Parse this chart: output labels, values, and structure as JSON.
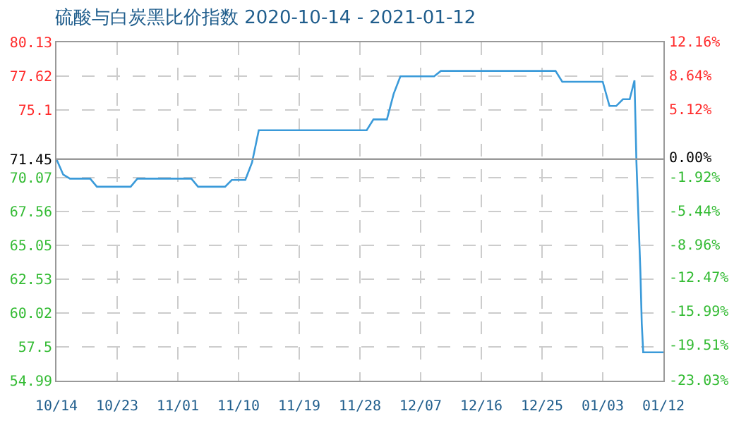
{
  "chart_data": {
    "type": "line",
    "title": "硫酸与白炭黑比价指数 2020-10-14 - 2021-01-12",
    "x": [
      "2020-10-14",
      "2020-10-15",
      "2020-10-16",
      "2020-10-19",
      "2020-10-20",
      "2020-10-25",
      "2020-10-26",
      "2020-11-03",
      "2020-11-04",
      "2020-11-08",
      "2020-11-09",
      "2020-11-11",
      "2020-11-12",
      "2020-11-13",
      "2020-11-29",
      "2020-11-30",
      "2020-12-02",
      "2020-12-03",
      "2020-12-04",
      "2020-12-09",
      "2020-12-10",
      "2020-12-27",
      "2020-12-28",
      "2021-01-03",
      "2021-01-04",
      "2021-01-05",
      "2021-01-06",
      "2021-01-07",
      "2021-01-07T17:00",
      "2021-01-08",
      "2021-01-08T07:00",
      "2021-01-08T14:00",
      "2021-01-08T19:00",
      "2021-01-09",
      "2021-01-12"
    ],
    "series": [
      {
        "color": "#3a9ad9",
        "values": [
          71.45,
          70.3,
          70,
          70,
          69.4,
          69.4,
          70,
          70,
          69.4,
          69.4,
          69.9,
          69.9,
          71.2,
          73.6,
          73.6,
          74.4,
          74.4,
          76.3,
          77.6,
          77.6,
          78,
          78,
          77.2,
          77.2,
          75.4,
          75.4,
          75.9,
          75.9,
          77.3,
          71.2,
          67.2,
          63.1,
          59.2,
          57.1,
          57.1
        ]
      }
    ],
    "xlim": [
      "2020-10-14",
      "2021-01-12"
    ],
    "xticks": [
      {
        "value": "2020-10-14",
        "label": "10/14"
      },
      {
        "value": "2020-10-23",
        "label": "10/23"
      },
      {
        "value": "2020-11-01",
        "label": "11/01"
      },
      {
        "value": "2020-11-10",
        "label": "11/10"
      },
      {
        "value": "2020-11-19",
        "label": "11/19"
      },
      {
        "value": "2020-11-28",
        "label": "11/28"
      },
      {
        "value": "2020-12-07",
        "label": "12/07"
      },
      {
        "value": "2020-12-16",
        "label": "12/16"
      },
      {
        "value": "2020-12-25",
        "label": "12/25"
      },
      {
        "value": "2021-01-03",
        "label": "01/03"
      },
      {
        "value": "2021-01-12",
        "label": "01/12"
      }
    ],
    "ylim": [
      54.99,
      80.13
    ],
    "yticks": [
      54.99,
      57.5,
      60.02,
      62.53,
      65.05,
      67.56,
      70.07,
      71.45,
      75.1,
      77.62,
      80.13
    ],
    "y2lim": [
      -23.03,
      12.16
    ],
    "y2ticks": [
      {
        "value": -23.03,
        "label": "-23.03%"
      },
      {
        "value": -19.51,
        "label": "-19.51%"
      },
      {
        "value": -15.99,
        "label": "-15.99%"
      },
      {
        "value": -12.47,
        "label": "-12.47%"
      },
      {
        "value": -8.96,
        "label": "-8.96%"
      },
      {
        "value": -5.44,
        "label": "-5.44%"
      },
      {
        "value": -1.92,
        "label": "-1.92%"
      },
      {
        "value": 0,
        "label": "0.00%"
      },
      {
        "value": 5.12,
        "label": "5.12%"
      },
      {
        "value": 8.64,
        "label": "8.64%"
      },
      {
        "value": 12.16,
        "label": "12.16%"
      }
    ],
    "ref_lines": [
      {
        "axis": "y",
        "value": 71.45,
        "color": "#999999"
      }
    ],
    "grid": true,
    "marker": "none",
    "line_style": "solid"
  }
}
